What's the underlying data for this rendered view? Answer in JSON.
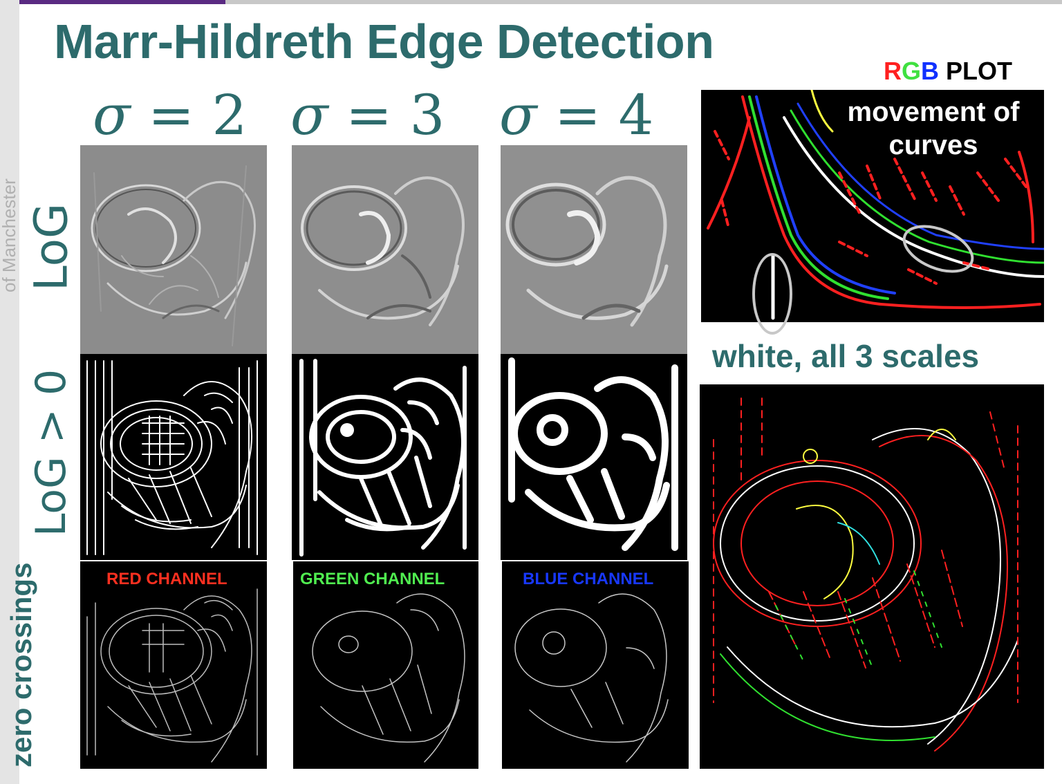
{
  "slide": {
    "title": "Marr-Hildreth Edge Detection",
    "side_text": "of Manchester"
  },
  "rgb_plot": {
    "r": "R",
    "g": "G",
    "b": "B",
    "plot_word": " PLOT",
    "colors": {
      "r": "#ff2020",
      "g": "#40e040",
      "b": "#1030ff"
    }
  },
  "sigma_headers": [
    {
      "symbol": "σ",
      "eq": " = ",
      "value": "2"
    },
    {
      "symbol": "σ",
      "eq": " = ",
      "value": "3"
    },
    {
      "symbol": "σ",
      "eq": " = ",
      "value": "4"
    }
  ],
  "row_labels": {
    "log": "LoG",
    "log_positive": "LoG > 0",
    "zero_crossings": "zero crossings"
  },
  "channels": [
    {
      "label": "RED CHANNEL",
      "color": "#ff3020"
    },
    {
      "label": "GREEN CHANNEL",
      "color": "#50ee50"
    },
    {
      "label": "BLUE CHANNEL",
      "color": "#1838ff"
    }
  ],
  "inset": {
    "caption": "movement of curves",
    "white_caption": "white, all 3 scales"
  }
}
